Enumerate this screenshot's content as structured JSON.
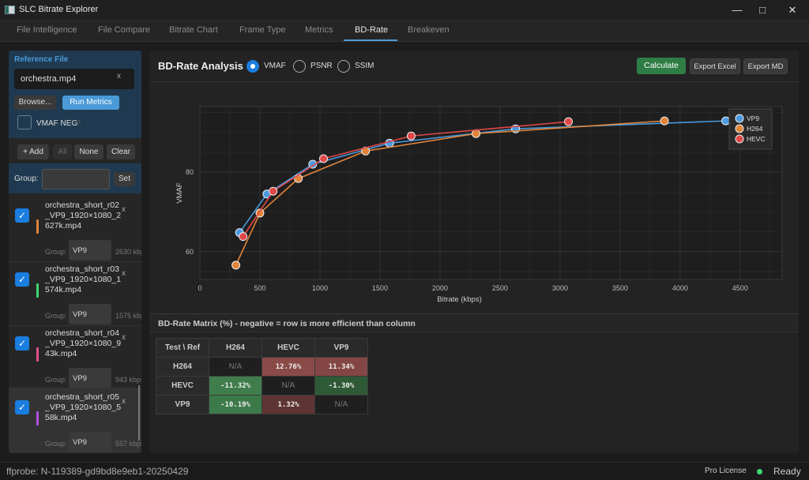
{
  "window": {
    "title": "SLC Bitrate Explorer"
  },
  "tabs": [
    {
      "label": "File Intelligence"
    },
    {
      "label": "File Compare"
    },
    {
      "label": "Bitrate Chart"
    },
    {
      "label": "Frame Type"
    },
    {
      "label": "Metrics"
    },
    {
      "label": "BD-Rate",
      "active": true
    },
    {
      "label": "Breakeven"
    }
  ],
  "sidebar": {
    "reference_label": "Reference File",
    "reference_value": "orchestra.mp4",
    "clear": "x",
    "browse": "Browse...",
    "run_metrics": "Run Metrics",
    "vmaf_neg": "VMAF NEG",
    "help": "?",
    "add": "+ Add",
    "all": "All",
    "none": "None",
    "clear_btn": "Clear",
    "group_label": "Group:",
    "group_value": "",
    "set": "Set",
    "files": [
      {
        "name": "orchestra_short_r02_VP9_1920×1080_2627k.mp4",
        "group_label": "Group:",
        "group": "VP9",
        "bitrate": "2630 kbps",
        "color": "#e0843a",
        "checked": true
      },
      {
        "name": "orchestra_short_r03_VP9_1920×1080_1574k.mp4",
        "group_label": "Group:",
        "group": "VP9",
        "bitrate": "1575 kbps",
        "color": "#3ed873",
        "checked": true
      },
      {
        "name": "orchestra_short_r04_VP9_1920×1080_943k.mp4",
        "group_label": "Group:",
        "group": "VP9",
        "bitrate": "943 kbps",
        "color": "#e0508e",
        "checked": true
      },
      {
        "name": "orchestra_short_r05_VP9_1920×1080_558k.mp4",
        "group_label": "Group:",
        "group": "VP9",
        "bitrate": "557 kbps",
        "color": "#b050e0",
        "checked": true
      }
    ]
  },
  "header": {
    "title": "BD-Rate Analysis",
    "metrics": [
      "VMAF",
      "PSNR",
      "SSIM"
    ],
    "selected": "VMAF",
    "calculate": "Calculate",
    "export_excel": "Export Excel",
    "export_md": "Export MD"
  },
  "chart_data": {
    "type": "line",
    "xlabel": "Bitrate (kbps)",
    "ylabel": "VMAF",
    "xlim": [
      0,
      4850
    ],
    "ylim": [
      53,
      96.5
    ],
    "xticks": [
      0,
      500,
      1000,
      1500,
      2000,
      2500,
      3000,
      3500,
      4000,
      4500
    ],
    "yticks": [
      60,
      80
    ],
    "grid": true,
    "legend": "top-right",
    "series": [
      {
        "name": "VP9",
        "color": "#4a9ae0",
        "x": [
          330,
          558,
          940,
          1580,
          2630,
          4380
        ],
        "y": [
          64.8,
          74.5,
          82,
          87.3,
          90.9,
          92.9
        ]
      },
      {
        "name": "H264",
        "color": "#e0843a",
        "x": [
          300,
          500,
          820,
          1380,
          2300,
          3870
        ],
        "y": [
          56.6,
          69.7,
          78.4,
          85.3,
          89.7,
          92.9
        ]
      },
      {
        "name": "HEVC",
        "color": "#e04848",
        "x": [
          360,
          610,
          1030,
          1760,
          3070
        ],
        "y": [
          63.8,
          75.2,
          83.4,
          89.1,
          92.7
        ]
      }
    ]
  },
  "matrix": {
    "title": "BD-Rate Matrix (%) - negative = row is more efficient than column",
    "corner": "Test \\ Ref",
    "columns": [
      "H264",
      "HEVC",
      "VP9"
    ],
    "rows": [
      {
        "label": "H264",
        "cells": [
          "N/A",
          "12.76%",
          "11.34%"
        ]
      },
      {
        "label": "HEVC",
        "cells": [
          "-11.32%",
          "N/A",
          "-1.30%"
        ]
      },
      {
        "label": "VP9",
        "cells": [
          "-10.19%",
          "1.32%",
          "N/A"
        ]
      }
    ]
  },
  "status": {
    "ffprobe": "ffprobe: N-119389-gd9bd8e9eb1-20250429",
    "license": "Pro License",
    "state": "Ready",
    "state_color": "#3ed873"
  }
}
